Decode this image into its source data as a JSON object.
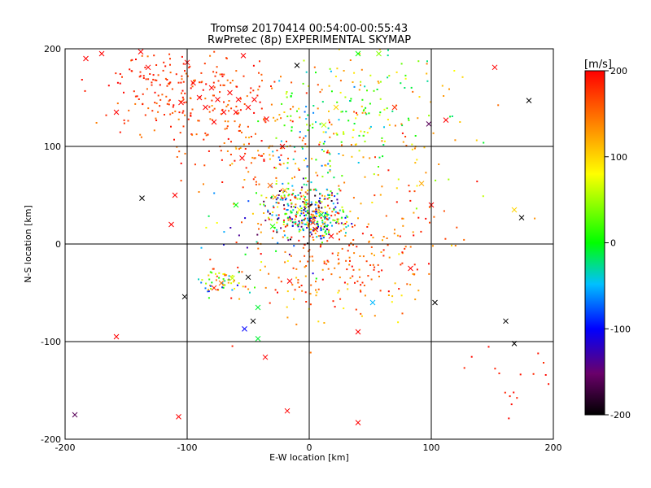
{
  "chart_data": {
    "type": "scatter",
    "title": "Tromsø 20170414 00:54:00-00:55:43",
    "subtitle": "RwPretec (8p) EXPERIMENTAL SKYMAP",
    "xlabel": "E-W location [km]",
    "ylabel": "N-S location [km]",
    "xlim": [
      -200,
      200
    ],
    "ylim": [
      -200,
      200
    ],
    "xticks": [
      "-200",
      "-100",
      "0",
      "100",
      "200"
    ],
    "yticks": [
      "-200",
      "-100",
      "0",
      "100",
      "200"
    ],
    "grid": true,
    "colorbar": {
      "unit": "[m/s]",
      "range": [
        -200,
        200
      ],
      "ticks": [
        "200",
        "100",
        "0",
        "-100",
        "-200"
      ],
      "colormap": [
        "#000000",
        "#6a006a",
        "#0000ff",
        "#00c0ff",
        "#00ff00",
        "#ffff00",
        "#ff8000",
        "#ff0000"
      ]
    },
    "series": [
      {
        "marker": "x",
        "points": [
          {
            "x": -183,
            "y": 190,
            "v": 200
          },
          {
            "x": -138,
            "y": 197,
            "v": 200
          },
          {
            "x": -132,
            "y": 181,
            "v": 200
          },
          {
            "x": -100,
            "y": 186,
            "v": 200
          },
          {
            "x": -158,
            "y": 135,
            "v": 200
          },
          {
            "x": -80,
            "y": 160,
            "v": 200
          },
          {
            "x": -75,
            "y": 148,
            "v": 200
          },
          {
            "x": -85,
            "y": 140,
            "v": 200
          },
          {
            "x": -70,
            "y": 135,
            "v": 200
          },
          {
            "x": -90,
            "y": 150,
            "v": 200
          },
          {
            "x": -65,
            "y": 155,
            "v": 200
          },
          {
            "x": -58,
            "y": 148,
            "v": 200
          },
          {
            "x": -95,
            "y": 165,
            "v": 200
          },
          {
            "x": -78,
            "y": 125,
            "v": 200
          },
          {
            "x": -105,
            "y": 145,
            "v": 200
          },
          {
            "x": -45,
            "y": 148,
            "v": 200
          },
          {
            "x": -35,
            "y": 128,
            "v": 200
          },
          {
            "x": 152,
            "y": 181,
            "v": 200
          },
          {
            "x": 112,
            "y": 127,
            "v": 200
          },
          {
            "x": -110,
            "y": 50,
            "v": 200
          },
          {
            "x": -113,
            "y": 20,
            "v": 200
          },
          {
            "x": -158,
            "y": -95,
            "v": 200
          },
          {
            "x": -107,
            "y": -177,
            "v": 200
          },
          {
            "x": -18,
            "y": -171,
            "v": 200
          },
          {
            "x": 40,
            "y": -183,
            "v": 200
          },
          {
            "x": -16,
            "y": -38,
            "v": 200
          },
          {
            "x": -50,
            "y": 140,
            "v": 200
          },
          {
            "x": -22,
            "y": 100,
            "v": 200
          },
          {
            "x": 70,
            "y": 140,
            "v": 180
          },
          {
            "x": 92,
            "y": 62,
            "v": 120
          },
          {
            "x": 100,
            "y": 40,
            "v": 200
          },
          {
            "x": 18,
            "y": 8,
            "v": 200
          },
          {
            "x": 3,
            "y": 22,
            "v": 180
          },
          {
            "x": 83,
            "y": -25,
            "v": 200
          },
          {
            "x": 40,
            "y": -90,
            "v": 200
          },
          {
            "x": -36,
            "y": -116,
            "v": 200
          },
          {
            "x": -72,
            "y": -40,
            "v": 150
          },
          {
            "x": -78,
            "y": -45,
            "v": 180
          },
          {
            "x": -63,
            "y": -35,
            "v": 60
          },
          {
            "x": -54,
            "y": 193,
            "v": 200
          },
          {
            "x": -60,
            "y": 135,
            "v": 200
          },
          {
            "x": -32,
            "y": 60,
            "v": 150
          },
          {
            "x": -20,
            "y": 55,
            "v": 110
          },
          {
            "x": -28,
            "y": 48,
            "v": 120
          },
          {
            "x": -55,
            "y": 88,
            "v": 200
          },
          {
            "x": -8,
            "y": 35,
            "v": 80
          },
          {
            "x": 10,
            "y": 30,
            "v": -20
          },
          {
            "x": 5,
            "y": 15,
            "v": 200
          },
          {
            "x": 57,
            "y": 195,
            "v": 40
          },
          {
            "x": 22,
            "y": 140,
            "v": 100
          },
          {
            "x": 12,
            "y": 122,
            "v": 60
          },
          {
            "x": -170,
            "y": 195,
            "v": 200
          },
          {
            "x": 180,
            "y": 147,
            "v": -200
          },
          {
            "x": 98,
            "y": 123,
            "v": -160
          },
          {
            "x": -137,
            "y": 47,
            "v": -200
          },
          {
            "x": 174,
            "y": 27,
            "v": -200
          },
          {
            "x": 168,
            "y": 35,
            "v": 100
          },
          {
            "x": -102,
            "y": -54,
            "v": -200
          },
          {
            "x": -50,
            "y": -34,
            "v": -200
          },
          {
            "x": 103,
            "y": -60,
            "v": -200
          },
          {
            "x": 161,
            "y": -79,
            "v": -200
          },
          {
            "x": 168,
            "y": -102,
            "v": -200
          },
          {
            "x": -46,
            "y": -79,
            "v": -200
          },
          {
            "x": -53,
            "y": -87,
            "v": -100
          },
          {
            "x": -42,
            "y": -65,
            "v": -10
          },
          {
            "x": -42,
            "y": -97,
            "v": -10
          },
          {
            "x": 52,
            "y": -60,
            "v": -50
          },
          {
            "x": -192,
            "y": -175,
            "v": -160
          },
          {
            "x": -10,
            "y": 183,
            "v": -200
          },
          {
            "x": 40,
            "y": 195,
            "v": 0
          },
          {
            "x": -60,
            "y": 40,
            "v": 0
          },
          {
            "x": -30,
            "y": 18,
            "v": 10
          }
        ]
      },
      {
        "marker": "dot",
        "clusters": [
          {
            "cx": -95,
            "cy": 150,
            "sx": 35,
            "sy": 22,
            "n": 190,
            "vmin": 140,
            "vmax": 200
          },
          {
            "cx": -40,
            "cy": 90,
            "sx": 30,
            "sy": 25,
            "n": 110,
            "vmin": 110,
            "vmax": 200
          },
          {
            "cx": -5,
            "cy": 38,
            "sx": 18,
            "sy": 15,
            "n": 220,
            "vmin": -200,
            "vmax": 200
          },
          {
            "cx": 10,
            "cy": 22,
            "sx": 12,
            "sy": 10,
            "n": 130,
            "vmin": -150,
            "vmax": 200
          },
          {
            "cx": 35,
            "cy": -15,
            "sx": 35,
            "sy": 22,
            "n": 130,
            "vmin": 120,
            "vmax": 200
          },
          {
            "cx": 45,
            "cy": 140,
            "sx": 35,
            "sy": 35,
            "n": 160,
            "vmin": -50,
            "vmax": 160
          },
          {
            "cx": 5,
            "cy": 100,
            "sx": 20,
            "sy": 35,
            "n": 90,
            "vmin": -80,
            "vmax": 140
          },
          {
            "cx": 85,
            "cy": 70,
            "sx": 22,
            "sy": 30,
            "n": 35,
            "vmin": 40,
            "vmax": 200
          },
          {
            "cx": -72,
            "cy": -38,
            "sx": 10,
            "sy": 8,
            "n": 55,
            "vmin": -120,
            "vmax": 200
          },
          {
            "cx": 5,
            "cy": -45,
            "sx": 45,
            "sy": 25,
            "n": 70,
            "vmin": 80,
            "vmax": 200
          },
          {
            "cx": 165,
            "cy": -140,
            "sx": 18,
            "sy": 18,
            "n": 18,
            "vmin": 180,
            "vmax": 200
          },
          {
            "cx": -25,
            "cy": 20,
            "sx": 30,
            "sy": 25,
            "n": 60,
            "vmin": -200,
            "vmax": 200
          },
          {
            "cx": 70,
            "cy": 10,
            "sx": 30,
            "sy": 20,
            "n": 35,
            "vmin": 120,
            "vmax": 200
          },
          {
            "cx": -130,
            "cy": 175,
            "sx": 25,
            "sy": 15,
            "n": 45,
            "vmin": 170,
            "vmax": 200
          }
        ]
      }
    ]
  }
}
